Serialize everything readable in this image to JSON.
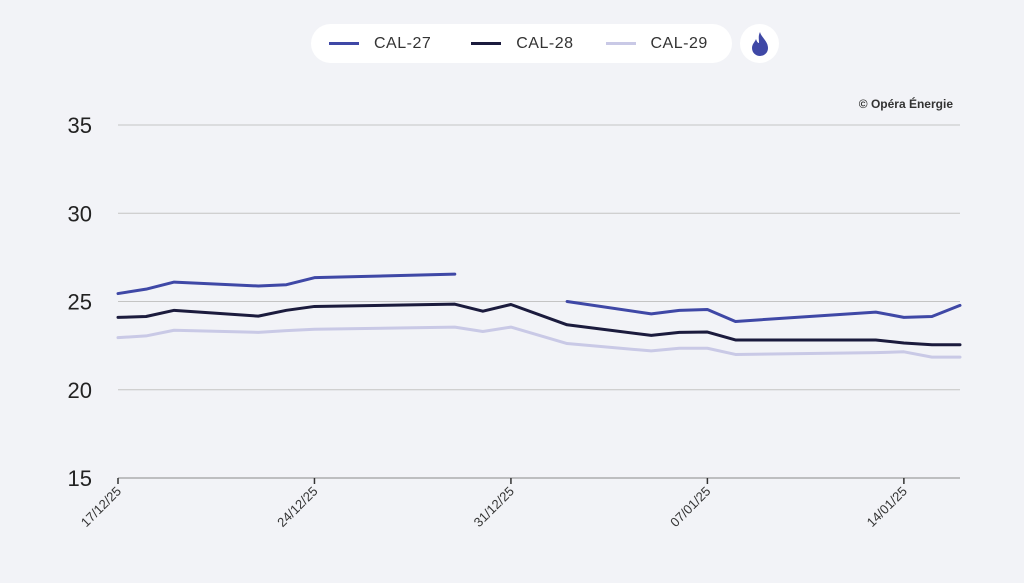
{
  "legend": {
    "items": [
      {
        "label": "CAL-27",
        "color": "#3f48a6"
      },
      {
        "label": "CAL-28",
        "color": "#1b1b3d"
      },
      {
        "label": "CAL-29",
        "color": "#c9c9e6"
      }
    ],
    "energy_toggle_icon": "fire-icon",
    "energy_toggle_color": "#3f48a6"
  },
  "copyright": "© Opéra Énergie",
  "chart_data": {
    "type": "line",
    "title": "",
    "xlabel": "",
    "ylabel": "",
    "ylim": [
      15,
      35
    ],
    "yticks": [
      15,
      20,
      25,
      30,
      35
    ],
    "grid": true,
    "legend_position": "top-center",
    "xtick_labels": [
      "17/12/25",
      "24/12/25",
      "31/12/25",
      "07/01/25",
      "14/01/25"
    ],
    "xtick_days": [
      0,
      7,
      14,
      21,
      28
    ],
    "x_days": [
      0,
      1,
      2,
      5,
      6,
      7,
      12,
      13,
      14,
      16,
      19,
      20,
      21,
      22,
      27,
      28,
      29,
      30
    ],
    "x": [
      "17/12/25",
      "18/12/25",
      "19/12/25",
      "22/12/25",
      "23/12/25",
      "24/12/25",
      "29/12/25",
      "30/12/25",
      "31/12/25",
      "02/01/25",
      "05/01/25",
      "06/01/25",
      "07/01/25",
      "08/01/25",
      "13/01/25",
      "14/01/25",
      "15/01/25",
      "16/01/25"
    ],
    "x_range_days": [
      0,
      30
    ],
    "series": [
      {
        "name": "CAL-27",
        "color": "#3f48a6",
        "values": [
          25.45,
          25.7,
          26.1,
          25.88,
          25.95,
          26.35,
          26.55,
          null,
          null,
          25.0,
          24.3,
          24.5,
          24.55,
          23.87,
          24.4,
          24.1,
          24.15,
          24.78
        ]
      },
      {
        "name": "CAL-28",
        "color": "#1b1b3d",
        "values": [
          24.1,
          24.15,
          24.5,
          24.17,
          24.5,
          24.72,
          24.85,
          24.45,
          24.83,
          23.68,
          23.08,
          23.25,
          23.27,
          22.82,
          22.82,
          22.65,
          22.55,
          22.55
        ]
      },
      {
        "name": "CAL-29",
        "color": "#c9c9e6",
        "values": [
          22.95,
          23.05,
          23.37,
          23.25,
          23.35,
          23.43,
          23.55,
          23.3,
          23.55,
          22.62,
          22.2,
          22.35,
          22.35,
          22.0,
          22.1,
          22.15,
          21.85,
          21.85
        ]
      }
    ]
  }
}
